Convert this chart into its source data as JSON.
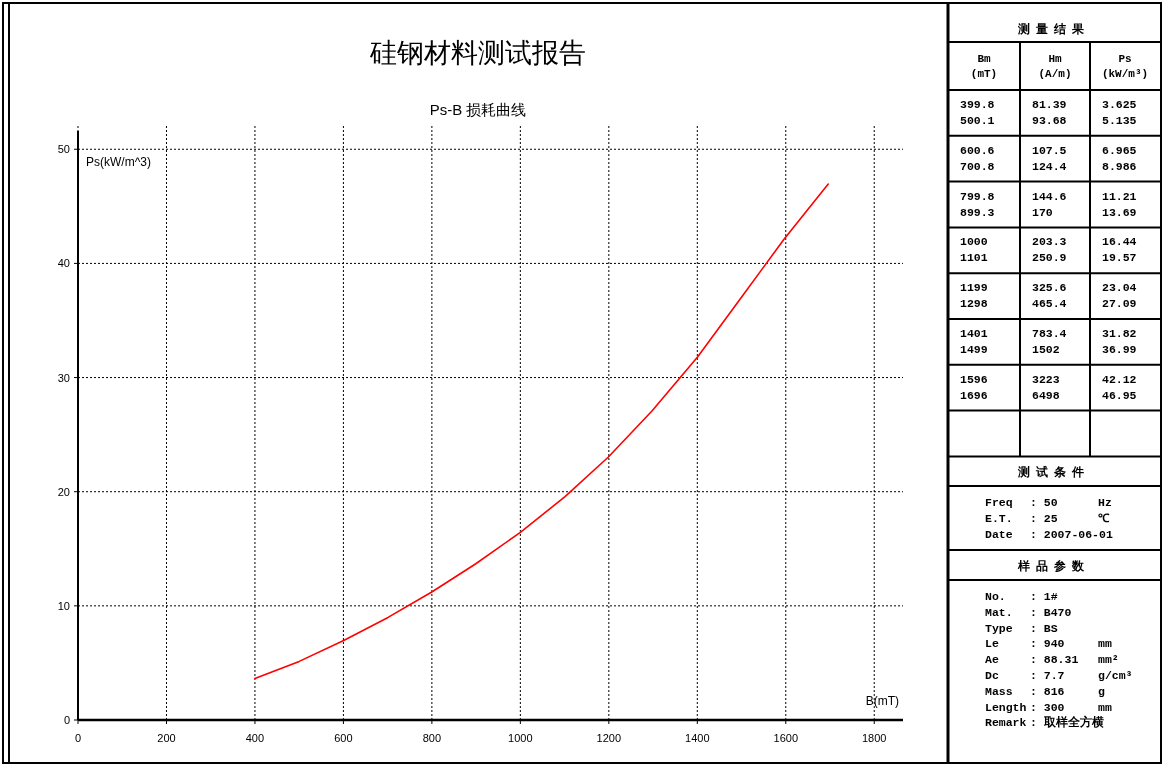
{
  "chart_data": [
    {
      "type": "line",
      "title": "硅钢材料测试报告",
      "subtitle": "Ps-B 损耗曲线",
      "xlabel": "B(mT)",
      "ylabel": "Ps(kW/m^3)",
      "x": [
        399.8,
        500.1,
        600.6,
        700.8,
        799.8,
        899.3,
        1000,
        1101,
        1199,
        1298,
        1401,
        1499,
        1596,
        1696
      ],
      "series": [
        {
          "color": "#ff0000",
          "values": [
            3.625,
            5.135,
            6.965,
            8.986,
            11.21,
            13.69,
            16.44,
            19.57,
            23.04,
            27.09,
            31.82,
            36.99,
            42.12,
            46.95
          ]
        }
      ],
      "xlim": [
        0,
        1865
      ],
      "ylim": [
        0,
        51.6
      ],
      "xticks": [
        0,
        200,
        400,
        600,
        800,
        1000,
        1200,
        1400,
        1600,
        1800
      ],
      "yticks": [
        0,
        10,
        20,
        30,
        40,
        50
      ],
      "grid": true
    },
    {
      "type": "other",
      "title": "测量结果",
      "annotations": [
        "Bm",
        "Hm",
        "Ps",
        "(mT)",
        "(A/m)",
        "(kW/m³)",
        "399.8",
        "81.39",
        "3.625",
        "500.1",
        "93.68",
        "5.135",
        "600.6",
        "107.5",
        "6.965",
        "700.8",
        "124.4",
        "8.986",
        "799.8",
        "144.6",
        "11.21",
        "899.3",
        "170",
        "13.69",
        "1000",
        "203.3",
        "16.44",
        "1101",
        "250.9",
        "19.57",
        "1199",
        "325.6",
        "23.04",
        "1298",
        "465.4",
        "27.09",
        "1401",
        "783.4",
        "31.82",
        "1499",
        "1502",
        "36.99",
        "1596",
        "3223",
        "42.12",
        "1696",
        "6498",
        "46.95"
      ]
    },
    {
      "type": "other",
      "title": "测试条件",
      "annotations": [
        "Freq",
        ": 50",
        "Hz",
        "E.T.",
        ": 25",
        "℃",
        "Date",
        ": 2007-06-01",
        null
      ]
    },
    {
      "type": "other",
      "title": "样品参数",
      "annotations": [
        "No.",
        ": 1#",
        null,
        "Mat.",
        ": B470",
        null,
        "Type",
        ": BS",
        null,
        "Le",
        ": 940",
        "mm",
        "Ae",
        ": 88.31",
        "mm²",
        "Dc",
        ": 7.7",
        "g/cm³",
        "Mass",
        ": 816",
        "g",
        "Length",
        ": 300",
        "mm",
        "Remark",
        ": 取样全方横",
        null
      ]
    }
  ]
}
